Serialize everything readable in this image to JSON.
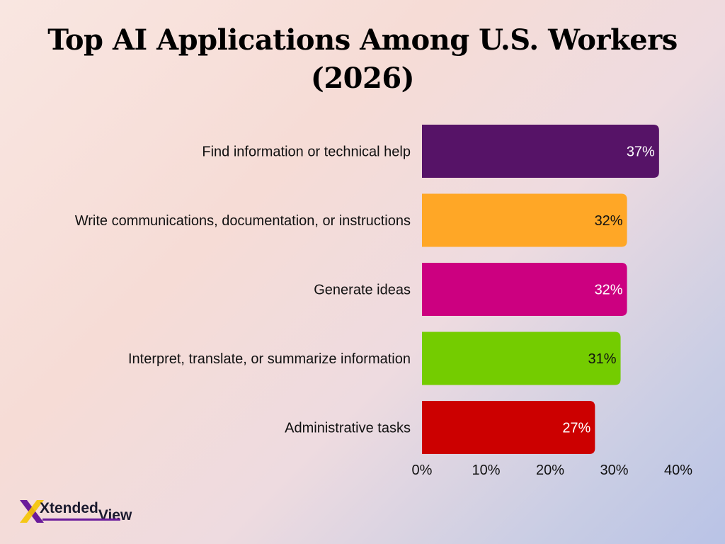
{
  "chart_data": {
    "type": "bar",
    "orientation": "horizontal",
    "title": "Top AI Applications Among U.S. Workers (2026)",
    "categories": [
      "Find information or technical help",
      "Write communications, documentation, or instructions",
      "Generate ideas",
      "Interpret, translate, or summarize information",
      "Administrative tasks"
    ],
    "values": [
      37,
      32,
      32,
      31,
      27
    ],
    "value_labels": [
      "37%",
      "32%",
      "32%",
      "31%",
      "27%"
    ],
    "bar_colors": [
      "#561367",
      "#ffa726",
      "#cc0080",
      "#74cc00",
      "#cc0000"
    ],
    "label_colors": [
      "#ffffff",
      "#111111",
      "#ffffff",
      "#111111",
      "#ffffff"
    ],
    "xlim": [
      0,
      40
    ],
    "x_ticks": [
      0,
      10,
      20,
      30,
      40
    ],
    "x_tick_labels": [
      "0%",
      "10%",
      "20%",
      "30%",
      "40%"
    ],
    "grid": false,
    "legend": "none"
  },
  "logo": {
    "brand_main": "Xtended",
    "brand_tail": "View",
    "mark_colors": [
      "#6a1b9a",
      "#f5c400"
    ]
  }
}
